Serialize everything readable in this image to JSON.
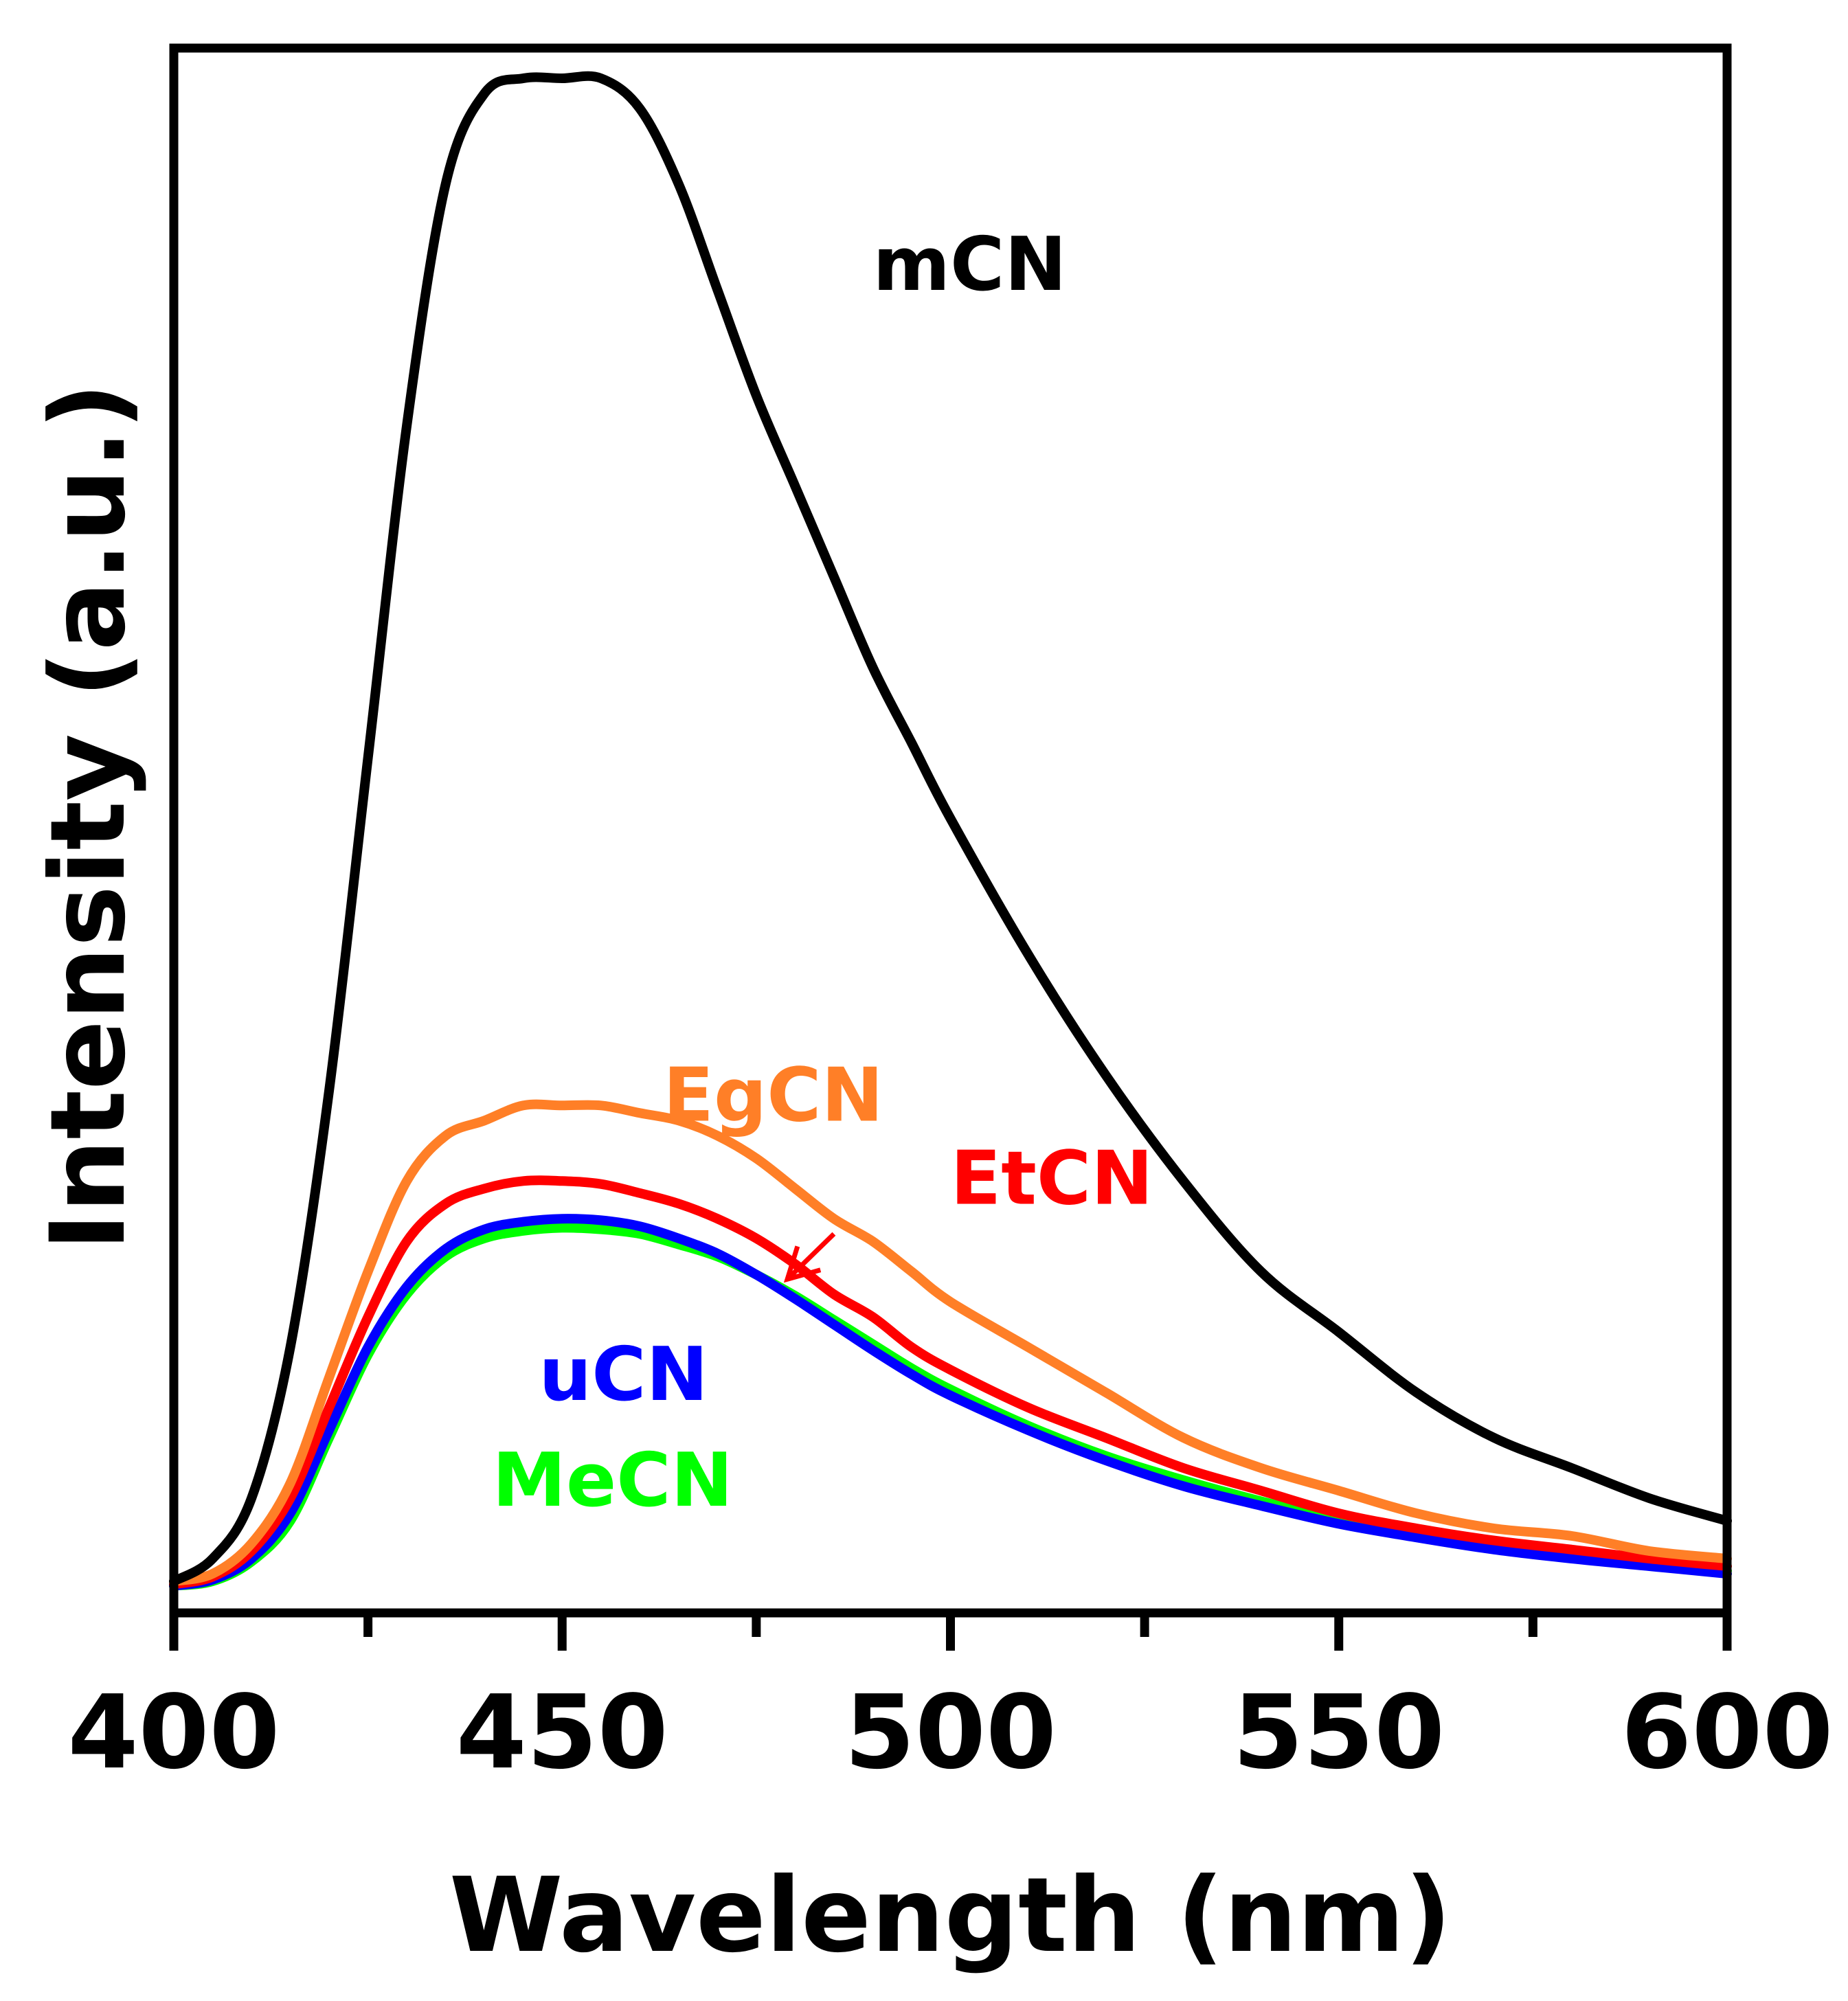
{
  "chart_data": {
    "type": "line",
    "title": "",
    "xlabel": "Wavelength (nm)",
    "ylabel": "Intensity (a.u.)",
    "xlim": [
      400,
      600
    ],
    "ylim": [
      0,
      1.02
    ],
    "x_ticks": [
      400,
      450,
      500,
      550,
      600
    ],
    "x_minor_ticks": [
      425,
      475,
      525,
      575
    ],
    "y_ticks_shown": false,
    "grid": false,
    "legend": "inline labels next to curves",
    "series": [
      {
        "name": "mCN",
        "color": "#000000",
        "x": [
          400,
          405,
          410,
          415,
          420,
          425,
          430,
          435,
          440,
          445,
          450,
          455,
          460,
          465,
          470,
          475,
          480,
          485,
          490,
          495,
          500,
          510,
          520,
          530,
          540,
          550,
          560,
          570,
          580,
          590,
          600
        ],
        "y": [
          0.005,
          0.02,
          0.06,
          0.16,
          0.33,
          0.55,
          0.77,
          0.93,
          0.99,
          1.0,
          1.0,
          1.0,
          0.98,
          0.93,
          0.86,
          0.79,
          0.73,
          0.67,
          0.61,
          0.56,
          0.51,
          0.42,
          0.34,
          0.27,
          0.21,
          0.17,
          0.13,
          0.1,
          0.08,
          0.06,
          0.045
        ]
      },
      {
        "name": "EgCN",
        "color": "#ff7f27",
        "x": [
          400,
          405,
          410,
          415,
          420,
          425,
          430,
          435,
          440,
          445,
          450,
          455,
          460,
          465,
          470,
          475,
          480,
          485,
          490,
          495,
          500,
          510,
          520,
          530,
          540,
          550,
          560,
          570,
          580,
          590,
          600
        ],
        "y": [
          0.005,
          0.01,
          0.03,
          0.07,
          0.14,
          0.21,
          0.27,
          0.3,
          0.31,
          0.32,
          0.32,
          0.32,
          0.315,
          0.31,
          0.3,
          0.285,
          0.265,
          0.245,
          0.23,
          0.21,
          0.19,
          0.16,
          0.13,
          0.1,
          0.08,
          0.065,
          0.05,
          0.04,
          0.035,
          0.025,
          0.02
        ]
      },
      {
        "name": "EtCN",
        "color": "#ff0000",
        "x": [
          400,
          405,
          410,
          415,
          420,
          425,
          430,
          435,
          440,
          445,
          450,
          455,
          460,
          465,
          470,
          475,
          480,
          485,
          490,
          495,
          500,
          510,
          520,
          530,
          540,
          550,
          560,
          570,
          580,
          590,
          600
        ],
        "y": [
          0.003,
          0.008,
          0.025,
          0.06,
          0.12,
          0.18,
          0.23,
          0.255,
          0.265,
          0.27,
          0.27,
          0.268,
          0.262,
          0.255,
          0.245,
          0.232,
          0.215,
          0.195,
          0.18,
          0.16,
          0.145,
          0.12,
          0.1,
          0.08,
          0.065,
          0.05,
          0.04,
          0.032,
          0.026,
          0.02,
          0.015
        ]
      },
      {
        "name": "uCN",
        "color": "#0000ff",
        "x": [
          400,
          405,
          410,
          415,
          420,
          425,
          430,
          435,
          440,
          445,
          450,
          455,
          460,
          465,
          470,
          475,
          480,
          485,
          490,
          495,
          500,
          510,
          520,
          530,
          540,
          550,
          560,
          570,
          580,
          590,
          600
        ],
        "y": [
          0.002,
          0.006,
          0.02,
          0.05,
          0.105,
          0.16,
          0.2,
          0.225,
          0.238,
          0.243,
          0.245,
          0.244,
          0.24,
          0.232,
          0.222,
          0.208,
          0.192,
          0.175,
          0.158,
          0.142,
          0.128,
          0.105,
          0.085,
          0.068,
          0.055,
          0.043,
          0.034,
          0.026,
          0.02,
          0.015,
          0.01
        ]
      },
      {
        "name": "MeCN",
        "color": "#00ff00",
        "x": [
          400,
          405,
          410,
          415,
          420,
          425,
          430,
          435,
          440,
          445,
          450,
          455,
          460,
          465,
          470,
          475,
          480,
          485,
          490,
          495,
          500,
          510,
          520,
          530,
          540,
          550,
          560,
          570,
          580,
          590,
          600
        ],
        "y": [
          0.002,
          0.005,
          0.018,
          0.045,
          0.1,
          0.155,
          0.195,
          0.22,
          0.232,
          0.237,
          0.239,
          0.238,
          0.235,
          0.228,
          0.22,
          0.208,
          0.194,
          0.178,
          0.162,
          0.146,
          0.132,
          0.108,
          0.088,
          0.072,
          0.058,
          0.046,
          0.036,
          0.028,
          0.022,
          0.017,
          0.012
        ]
      }
    ],
    "annotations": [
      {
        "text": "mCN",
        "color": "#000000",
        "x": 490,
        "y": 0.86
      },
      {
        "text": "EgCN",
        "color": "#ff7f27",
        "x": 463,
        "y": 0.31
      },
      {
        "text": "EtCN",
        "color": "#ff0000",
        "x": 500,
        "y": 0.255
      },
      {
        "text": "uCN",
        "color": "#0000ff",
        "x": 447,
        "y": 0.125
      },
      {
        "text": "MeCN",
        "color": "#00ff00",
        "x": 441,
        "y": 0.055
      }
    ],
    "arrow": {
      "from_label": "EtCN",
      "from": [
        485,
        0.235
      ],
      "to": [
        479,
        0.205
      ],
      "color": "#ff0000"
    }
  }
}
